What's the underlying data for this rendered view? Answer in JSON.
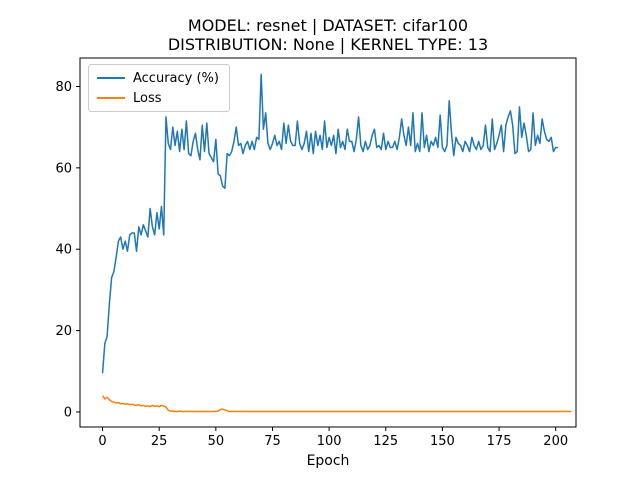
{
  "chart_data": {
    "type": "line",
    "title_lines": [
      "MODEL: resnet | DATASET: cifar100",
      "DISTRIBUTION: None | KERNEL TYPE: 13"
    ],
    "xlabel": "Epoch",
    "ylabel": "",
    "xlim": [
      -9.95,
      208.95
    ],
    "ylim": [
      -3.7,
      87.0
    ],
    "xticks": [
      0,
      25,
      50,
      75,
      100,
      125,
      150,
      175,
      200
    ],
    "yticks": [
      0,
      20,
      40,
      60,
      80
    ],
    "grid": false,
    "legend_position": "upper-left",
    "series": [
      {
        "name": "Accuracy (%)",
        "color": "#1f77b4",
        "values": [
          9.5,
          16.8,
          18.5,
          26.5,
          33.0,
          34.5,
          38.0,
          42.0,
          43.0,
          40.0,
          42.0,
          39.5,
          43.5,
          44.0,
          44.0,
          39.5,
          45.5,
          43.5,
          46.0,
          44.5,
          43.0,
          50.0,
          45.5,
          43.5,
          49.0,
          45.0,
          50.5,
          43.5,
          72.5,
          66.0,
          64.5,
          70.0,
          65.5,
          69.0,
          64.0,
          69.5,
          64.5,
          71.5,
          63.5,
          63.0,
          66.5,
          68.5,
          64.5,
          62.0,
          70.5,
          64.0,
          71.0,
          63.5,
          62.5,
          61.5,
          67.0,
          58.5,
          58.0,
          55.5,
          55.0,
          63.5,
          63.0,
          64.0,
          66.5,
          70.0,
          65.5,
          66.0,
          63.5,
          65.5,
          66.5,
          64.5,
          66.5,
          64.5,
          67.5,
          67.0,
          83.0,
          69.5,
          73.5,
          66.0,
          64.5,
          66.0,
          68.0,
          65.5,
          66.5,
          64.5,
          71.0,
          66.0,
          70.5,
          66.5,
          65.5,
          65.5,
          71.5,
          66.0,
          64.5,
          66.0,
          69.0,
          64.0,
          68.5,
          63.5,
          69.0,
          65.5,
          68.0,
          64.5,
          71.5,
          65.0,
          67.5,
          65.5,
          68.0,
          63.5,
          69.5,
          65.0,
          66.5,
          64.5,
          69.5,
          66.5,
          66.5,
          64.0,
          67.0,
          72.5,
          65.5,
          64.0,
          66.5,
          64.5,
          65.5,
          68.0,
          69.5,
          65.0,
          65.5,
          64.5,
          68.5,
          64.5,
          66.5,
          65.0,
          65.0,
          66.5,
          64.5,
          67.5,
          72.0,
          68.0,
          65.5,
          70.0,
          65.5,
          73.5,
          64.0,
          66.0,
          64.0,
          73.5,
          65.0,
          68.0,
          64.0,
          66.5,
          65.5,
          67.5,
          65.0,
          73.0,
          65.0,
          64.0,
          65.5,
          76.5,
          68.5,
          63.0,
          67.5,
          66.0,
          65.5,
          64.0,
          66.5,
          65.5,
          64.0,
          67.5,
          65.5,
          64.5,
          66.5,
          64.5,
          65.5,
          70.5,
          65.0,
          64.0,
          72.0,
          64.5,
          66.0,
          68.0,
          70.5,
          64.0,
          70.5,
          72.5,
          74.0,
          70.5,
          63.5,
          64.0,
          75.0,
          67.5,
          71.0,
          68.0,
          64.0,
          64.5,
          73.5,
          65.5,
          68.0,
          66.0,
          72.0,
          69.0,
          67.0,
          66.5,
          67.5,
          64.0,
          65.0,
          65.0
        ]
      },
      {
        "name": "Loss",
        "color": "#ff7f0e",
        "values": [
          4.0,
          3.2,
          3.6,
          3.0,
          2.6,
          2.4,
          2.2,
          2.3,
          2.0,
          2.1,
          1.9,
          2.0,
          1.8,
          1.9,
          1.7,
          1.6,
          1.8,
          1.5,
          1.6,
          1.4,
          1.5,
          1.3,
          1.6,
          1.4,
          1.5,
          1.3,
          1.6,
          1.4,
          1.2,
          0.4,
          0.2,
          0.2,
          0.1,
          0.1,
          0.2,
          0.1,
          0.1,
          0.1,
          0.1,
          0.1,
          0.1,
          0.1,
          0.1,
          0.1,
          0.1,
          0.1,
          0.1,
          0.1,
          0.1,
          0.1,
          0.1,
          0.2,
          0.6,
          0.7,
          0.5,
          0.3,
          0.1,
          0.1,
          0.1,
          0.1,
          0.1,
          0.1,
          0.1,
          0.1,
          0.1,
          0.1,
          0.1,
          0.1,
          0.1,
          0.1,
          0.1,
          0.1,
          0.1,
          0.1,
          0.1,
          0.1,
          0.1,
          0.1,
          0.1,
          0.1,
          0.1,
          0.1,
          0.1,
          0.1,
          0.1,
          0.1,
          0.1,
          0.1,
          0.1,
          0.1,
          0.1,
          0.1,
          0.1,
          0.1,
          0.1,
          0.1,
          0.1,
          0.1,
          0.1,
          0.1,
          0.1,
          0.1,
          0.1,
          0.1,
          0.1,
          0.1,
          0.1,
          0.1,
          0.1,
          0.1,
          0.1,
          0.1,
          0.1,
          0.1,
          0.1,
          0.1,
          0.1,
          0.1,
          0.1,
          0.1,
          0.1,
          0.1,
          0.1,
          0.1,
          0.1,
          0.1,
          0.1,
          0.1,
          0.1,
          0.1,
          0.1,
          0.1,
          0.1,
          0.1,
          0.1,
          0.1,
          0.1,
          0.1,
          0.1,
          0.1,
          0.1,
          0.1,
          0.1,
          0.1,
          0.1,
          0.1,
          0.1,
          0.1,
          0.1,
          0.1,
          0.1,
          0.1,
          0.1,
          0.1,
          0.1,
          0.1,
          0.1,
          0.1,
          0.1,
          0.1,
          0.1,
          0.1,
          0.1,
          0.1,
          0.1,
          0.1,
          0.1,
          0.1,
          0.1,
          0.1,
          0.1,
          0.1,
          0.1,
          0.1,
          0.1,
          0.1,
          0.1,
          0.1,
          0.1,
          0.1,
          0.1,
          0.1,
          0.1,
          0.1,
          0.1,
          0.1,
          0.1,
          0.1,
          0.1,
          0.1,
          0.1,
          0.1,
          0.1,
          0.1,
          0.1,
          0.1,
          0.1,
          0.1,
          0.1,
          0.1,
          0.1,
          0.1,
          0.1,
          0.1,
          0.1,
          0.1,
          0.1,
          0.1
        ]
      }
    ]
  }
}
